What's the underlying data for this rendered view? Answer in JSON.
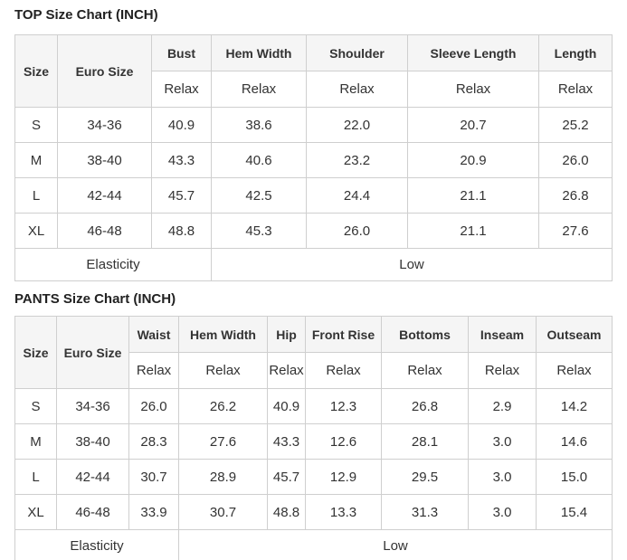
{
  "colors": {
    "header_bg": "#f5f5f5",
    "dark_cell_bg": "#3f3f3f",
    "dark_cell_text": "#ffffff",
    "border": "#cfcfcf",
    "text": "#333333"
  },
  "top_chart": {
    "title": "TOP Size Chart (INCH)",
    "corner_header": "Size",
    "euro_header": "Euro Size",
    "columns": [
      "Bust",
      "Hem Width",
      "Shoulder",
      "Sleeve Length",
      "Length"
    ],
    "fit_row": [
      "Relax",
      "Relax",
      "Relax",
      "Relax",
      "Relax"
    ],
    "rows": [
      {
        "size": "S",
        "euro": "34-36",
        "values": [
          "40.9",
          "38.6",
          "22.0",
          "20.7",
          "25.2"
        ]
      },
      {
        "size": "M",
        "euro": "38-40",
        "values": [
          "43.3",
          "40.6",
          "23.2",
          "20.9",
          "26.0"
        ]
      },
      {
        "size": "L",
        "euro": "42-44",
        "values": [
          "45.7",
          "42.5",
          "24.4",
          "21.1",
          "26.8"
        ]
      },
      {
        "size": "XL",
        "euro": "46-48",
        "values": [
          "48.8",
          "45.3",
          "26.0",
          "21.1",
          "27.6"
        ]
      }
    ],
    "footer": {
      "label": "Elasticity",
      "value": "Low"
    }
  },
  "pants_chart": {
    "title": "PANTS Size Chart (INCH)",
    "corner_header": "Size",
    "euro_header": "Euro Size",
    "columns": [
      "Waist",
      "Hem Width",
      "Hip",
      "Front Rise",
      "Bottoms",
      "Inseam",
      "Outseam"
    ],
    "fit_row": [
      "Relax",
      "Relax",
      "Relax",
      "Relax",
      "Relax",
      "Relax",
      "Relax"
    ],
    "rows": [
      {
        "size": "S",
        "euro": "34-36",
        "values": [
          "26.0",
          "26.2",
          "40.9",
          "12.3",
          "26.8",
          "2.9",
          "14.2"
        ]
      },
      {
        "size": "M",
        "euro": "38-40",
        "values": [
          "28.3",
          "27.6",
          "43.3",
          "12.6",
          "28.1",
          "3.0",
          "14.6"
        ]
      },
      {
        "size": "L",
        "euro": "42-44",
        "values": [
          "30.7",
          "28.9",
          "45.7",
          "12.9",
          "29.5",
          "3.0",
          "15.0"
        ]
      },
      {
        "size": "XL",
        "euro": "46-48",
        "values": [
          "33.9",
          "30.7",
          "48.8",
          "13.3",
          "31.3",
          "3.0",
          "15.4"
        ]
      }
    ],
    "footer": {
      "label": "Elasticity",
      "value": "Low"
    }
  }
}
